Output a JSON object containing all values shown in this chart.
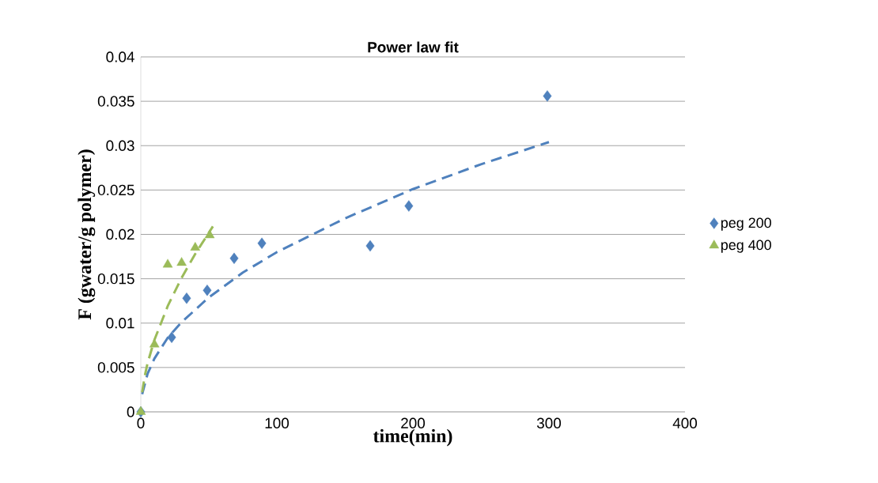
{
  "chart_data": {
    "type": "scatter",
    "title": "Power law fit",
    "xlabel": "time(min)",
    "ylabel": "F (gwater/g polymer)",
    "xlim": [
      0,
      400
    ],
    "ylim": [
      0,
      0.04
    ],
    "xticks": [
      0,
      100,
      200,
      300,
      400
    ],
    "yticks": [
      0,
      0.005,
      0.01,
      0.015,
      0.02,
      0.025,
      0.03,
      0.035,
      0.04
    ],
    "grid": "y",
    "legend": "right",
    "series": [
      {
        "name": "peg 200",
        "color": "#4f81bd",
        "marker": "diamond",
        "x": [
          0,
          22.7,
          33.7,
          48.8,
          68.6,
          89,
          168.6,
          197,
          298.8
        ],
        "values": [
          0,
          0.0084,
          0.0128,
          0.0137,
          0.0173,
          0.019,
          0.0187,
          0.0232,
          0.0356
        ]
      },
      {
        "name": "peg 400",
        "color": "#9bbb59",
        "marker": "triangle",
        "x": [
          0,
          10,
          19.8,
          30,
          40,
          50.6
        ],
        "values": [
          0,
          0.0076,
          0.0166,
          0.0168,
          0.0185,
          0.0199
        ]
      },
      {
        "type": "line",
        "color": "#4f81bd",
        "line_style": "dashed",
        "marker": "none",
        "x": [
          1,
          5,
          10,
          20,
          30,
          50,
          75,
          100,
          150,
          200,
          250,
          300
        ],
        "values": [
          0.002,
          0.0043,
          0.006,
          0.0084,
          0.0101,
          0.0129,
          0.0157,
          0.018,
          0.0218,
          0.0251,
          0.0279,
          0.0304
        ]
      },
      {
        "type": "line",
        "color": "#9bbb59",
        "line_style": "dashed",
        "marker": "none",
        "x": [
          1,
          3,
          5,
          10,
          20,
          30,
          40,
          53
        ],
        "values": [
          0.0022,
          0.0041,
          0.0055,
          0.0081,
          0.012,
          0.0151,
          0.0178,
          0.0209
        ]
      }
    ]
  }
}
